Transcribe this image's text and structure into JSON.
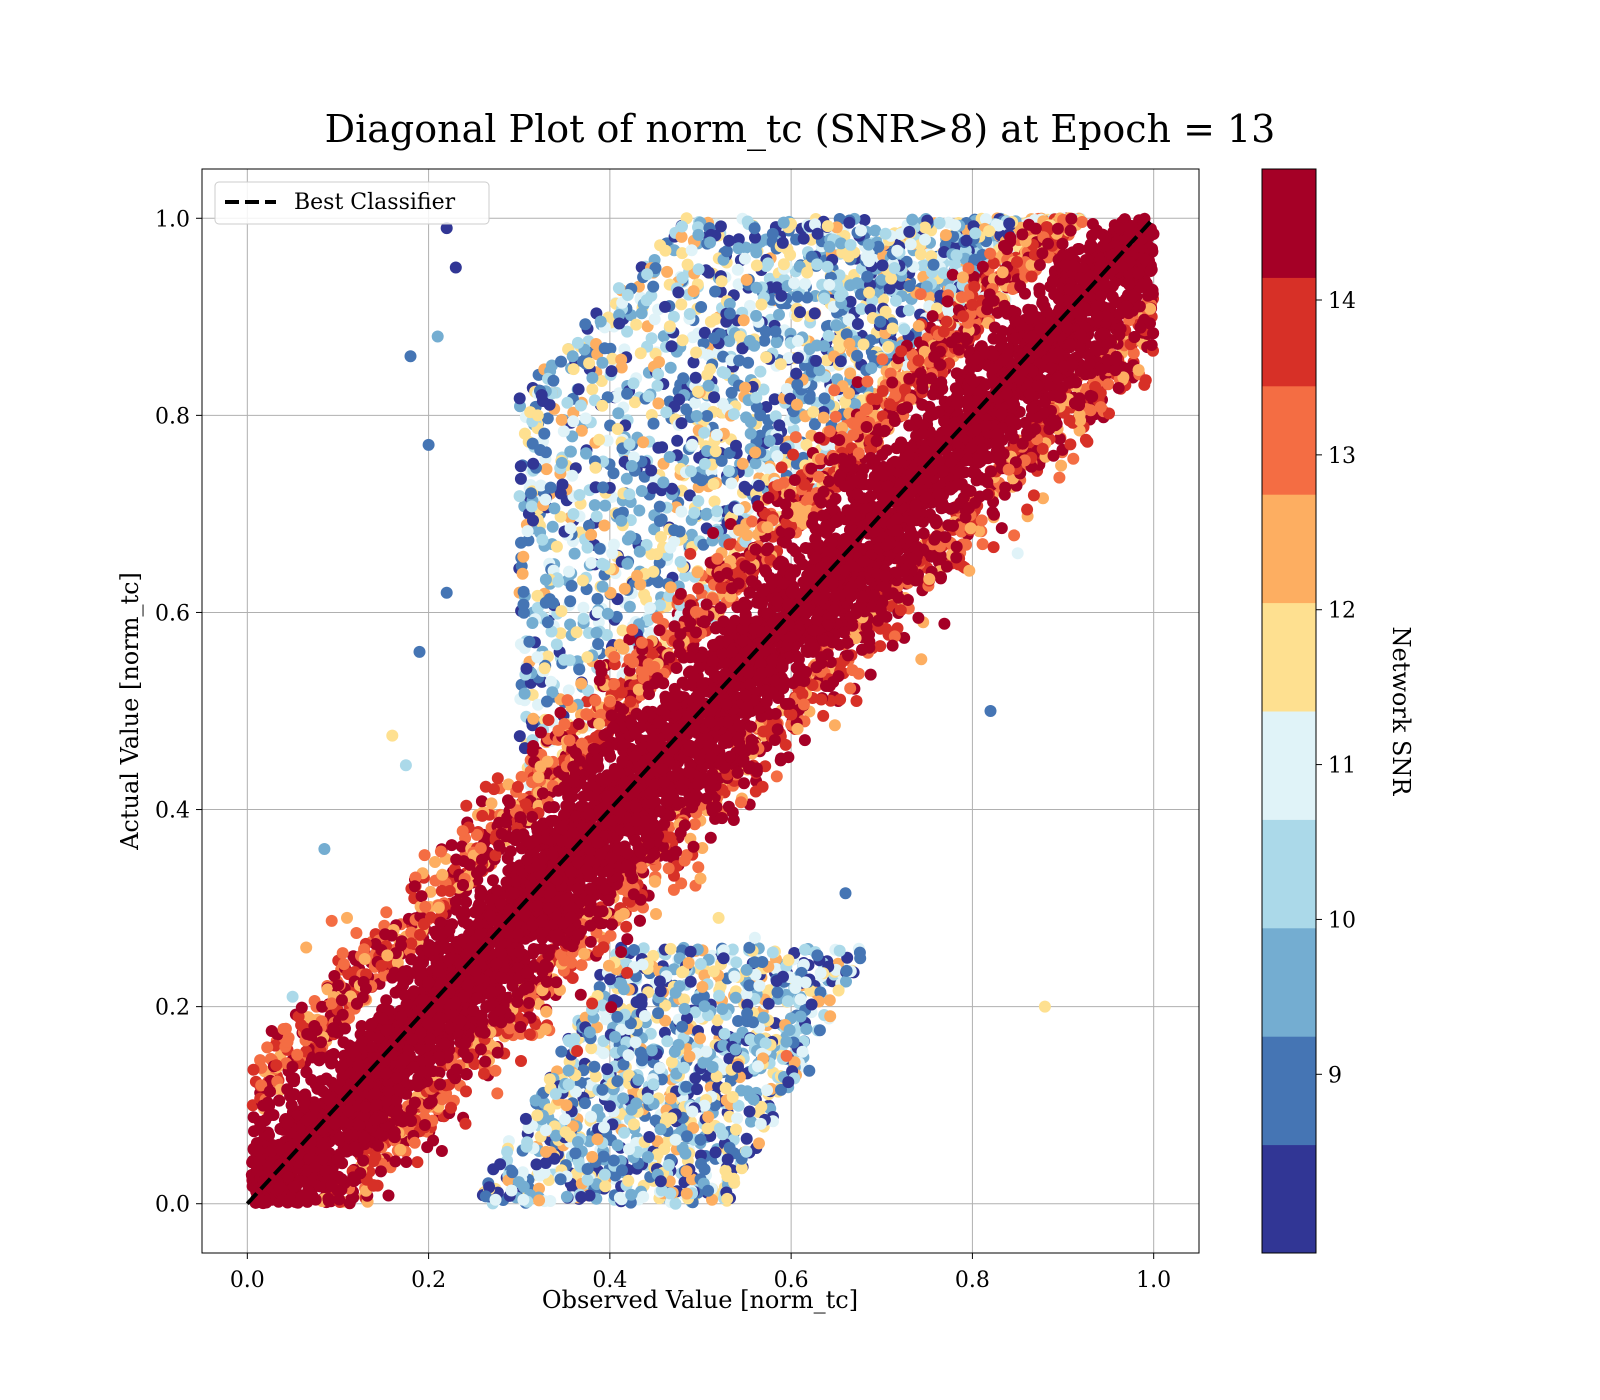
{
  "chart_data": {
    "type": "scatter",
    "title": "Diagonal Plot of norm_tc (SNR>8) at Epoch = 13",
    "xlabel": "Observed Value [norm_tc]",
    "ylabel": "Actual Value [norm_tc]",
    "xlim": [
      -0.05,
      1.05
    ],
    "ylim": [
      -0.05,
      1.05
    ],
    "x_ticks": [
      "0.0",
      "0.2",
      "0.4",
      "0.6",
      "0.8",
      "1.0"
    ],
    "y_ticks": [
      "0.0",
      "0.2",
      "0.4",
      "0.6",
      "0.8",
      "1.0"
    ],
    "grid": true,
    "legend": {
      "placement": "upper-left",
      "entries": [
        "Best Classifier"
      ]
    },
    "reference_line": {
      "name": "Best Classifier",
      "style": "dashed",
      "color": "#000000",
      "x": [
        0,
        1
      ],
      "y": [
        0,
        1
      ]
    },
    "colorbar": {
      "label": "Network SNR",
      "range": [
        8.0,
        15.0
      ],
      "ticks": [
        "9",
        "10",
        "11",
        "12",
        "13",
        "14"
      ],
      "colors": [
        "#313695",
        "#4575b4",
        "#74add1",
        "#abd9e9",
        "#e0f3f8",
        "#fee090",
        "#fdae61",
        "#f46d43",
        "#d73027",
        "#a50026"
      ]
    },
    "outliers": [
      {
        "x": 0.22,
        "y": 0.99,
        "snr": 8.3
      },
      {
        "x": 0.18,
        "y": 0.86,
        "snr": 9.0
      },
      {
        "x": 0.2,
        "y": 0.77,
        "snr": 9.2
      },
      {
        "x": 0.21,
        "y": 0.88,
        "snr": 9.4
      },
      {
        "x": 0.23,
        "y": 0.95,
        "snr": 8.2
      },
      {
        "x": 0.19,
        "y": 0.56,
        "snr": 9.1
      },
      {
        "x": 0.22,
        "y": 0.62,
        "snr": 9.3
      },
      {
        "x": 0.16,
        "y": 0.475,
        "snr": 12.2
      },
      {
        "x": 0.175,
        "y": 0.445,
        "snr": 10.4
      },
      {
        "x": 0.085,
        "y": 0.36,
        "snr": 9.8
      },
      {
        "x": 0.82,
        "y": 0.5,
        "snr": 9.1
      },
      {
        "x": 0.66,
        "y": 0.315,
        "snr": 9.0
      },
      {
        "x": 0.62,
        "y": 0.135,
        "snr": 9.2
      },
      {
        "x": 0.595,
        "y": 0.15,
        "snr": 12.9
      },
      {
        "x": 0.88,
        "y": 0.2,
        "snr": 12.0
      },
      {
        "x": 0.56,
        "y": 0.27,
        "snr": 11.3
      },
      {
        "x": 0.85,
        "y": 0.66,
        "snr": 11.2
      },
      {
        "x": 0.84,
        "y": 0.745,
        "snr": 13.0
      },
      {
        "x": 0.52,
        "y": 0.29,
        "snr": 12.1
      },
      {
        "x": 0.5,
        "y": 0.33,
        "snr": 12.3
      },
      {
        "x": 0.53,
        "y": 0.045,
        "snr": 8.6
      },
      {
        "x": 0.5,
        "y": 0.065,
        "snr": 9.3
      },
      {
        "x": 0.065,
        "y": 0.26,
        "snr": 12.7
      },
      {
        "x": 0.05,
        "y": 0.21,
        "snr": 10.3
      },
      {
        "x": 0.11,
        "y": 0.29,
        "snr": 12.4
      }
    ]
  }
}
